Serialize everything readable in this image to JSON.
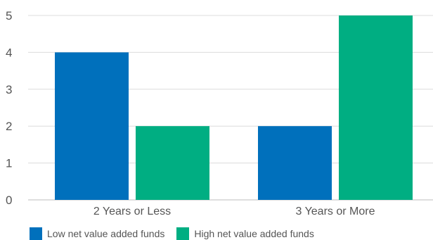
{
  "chart_data": {
    "type": "bar",
    "categories": [
      "2 Years or Less",
      "3 Years or More"
    ],
    "series": [
      {
        "name": "Low net value added funds",
        "values": [
          4,
          2
        ],
        "color": "#0070BC"
      },
      {
        "name": "High net value added funds",
        "values": [
          2,
          5
        ],
        "color": "#00AE82"
      }
    ],
    "yticks": [
      0,
      1,
      2,
      3,
      4,
      5
    ],
    "ylim": [
      0,
      5
    ],
    "grid": true,
    "legend_position": "bottom-left",
    "title": "",
    "xlabel": "",
    "ylabel": ""
  }
}
